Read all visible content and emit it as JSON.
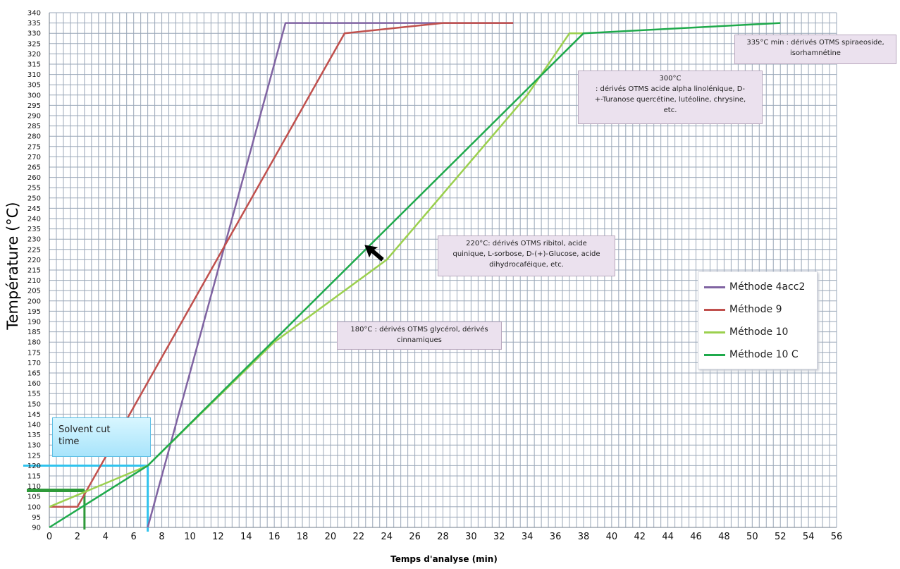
{
  "chart_data": {
    "type": "line",
    "xlabel": "Temps d'analyse (min)",
    "ylabel": "Température (°C)",
    "xlim": [
      0,
      56
    ],
    "ylim": [
      90,
      340
    ],
    "x_ticks": [
      0,
      2,
      4,
      6,
      8,
      10,
      12,
      14,
      16,
      18,
      20,
      22,
      24,
      26,
      28,
      30,
      32,
      34,
      36,
      38,
      40,
      42,
      44,
      46,
      48,
      50,
      52,
      54,
      56
    ],
    "y_ticks": [
      90,
      95,
      100,
      105,
      110,
      115,
      120,
      125,
      130,
      135,
      140,
      145,
      150,
      155,
      160,
      165,
      170,
      175,
      180,
      185,
      190,
      195,
      200,
      205,
      210,
      215,
      220,
      225,
      230,
      235,
      240,
      245,
      250,
      255,
      260,
      265,
      270,
      275,
      280,
      285,
      290,
      295,
      300,
      305,
      310,
      315,
      320,
      325,
      330,
      335,
      340
    ],
    "grid": true,
    "legend_position": "right",
    "series": [
      {
        "name": "Méthode 4acc2",
        "color": "#8064a2",
        "points": [
          [
            7,
            90
          ],
          [
            16.8,
            335
          ],
          [
            33,
            335
          ]
        ]
      },
      {
        "name": "Méthode 9",
        "color": "#c0504d",
        "points": [
          [
            0,
            100
          ],
          [
            2,
            100
          ],
          [
            21,
            330
          ],
          [
            28,
            335
          ],
          [
            33,
            335
          ]
        ]
      },
      {
        "name": "Méthode 10",
        "color": "#9bd04e",
        "points": [
          [
            0,
            100
          ],
          [
            7,
            120
          ],
          [
            16,
            180
          ],
          [
            24,
            220
          ],
          [
            34,
            300
          ],
          [
            37,
            330
          ],
          [
            38,
            330
          ]
        ]
      },
      {
        "name": "Méthode 10 C",
        "color": "#1faa4c",
        "points": [
          [
            0,
            90
          ],
          [
            7,
            120
          ],
          [
            38,
            330
          ],
          [
            52,
            335
          ]
        ]
      }
    ],
    "annotations": {
      "a335": [
        "335°C min : dérivés OTMS spiraeoside,",
        "isorhamnétine"
      ],
      "a300": [
        "300°C",
        ": dérivés OTMS acide alpha linolénique, D-",
        "+-Turanose quercétine, lutéoline, chrysine,",
        "etc."
      ],
      "a220": [
        "220°C: dérivés OTMS ribitol, acide",
        "quinique, L-sorbose, D-(+)-Glucose, acide",
        "dihydrocaféique, etc."
      ],
      "a180": [
        "180°C : dérivés OTMS glycérol, dérivés",
        "cinnamiques"
      ],
      "solvent": [
        "Solvent cut",
        "time"
      ]
    },
    "markers": {
      "solvent_cut_time": 7,
      "solvent_cut_temp": 120,
      "green_marker_time": 2.5,
      "green_marker_temp": 108
    }
  }
}
